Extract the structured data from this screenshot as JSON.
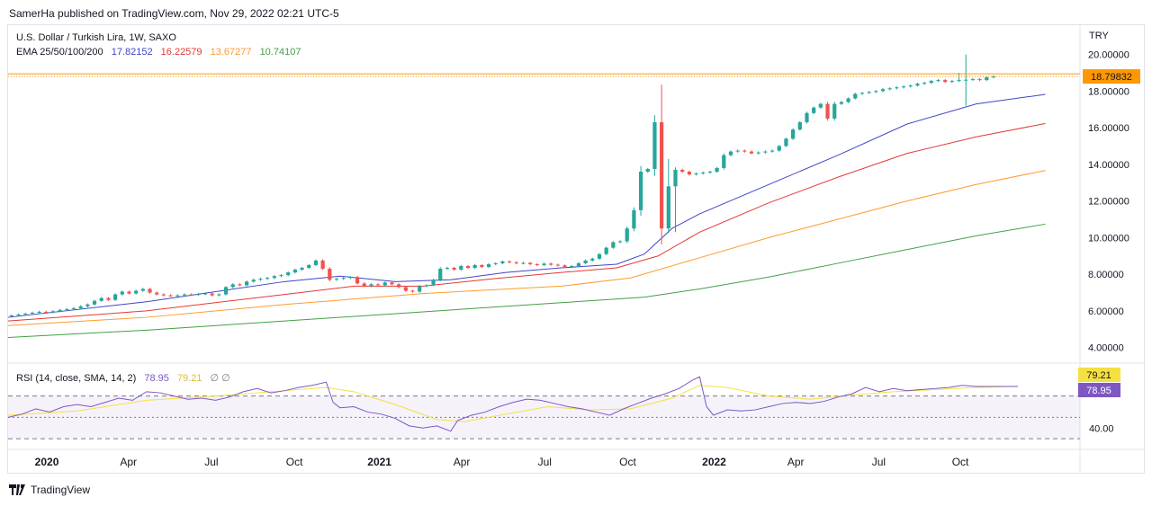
{
  "header": {
    "published": "SamerHa published on TradingView.com, Nov 29, 2022 02:21 UTC-5"
  },
  "footer": {
    "brand": "TradingView"
  },
  "colors": {
    "up": "#26a69a",
    "down": "#ef5350",
    "ema25": "#3f45c7",
    "ema50": "#e53935",
    "ema100": "#ff9a2e",
    "ema200": "#43a047",
    "rsi": "#7e57c2",
    "rsi_ma": "#f5e042",
    "price_line": "#ff9800"
  },
  "chart_data": [
    {
      "type": "candlestick",
      "title": "U.S. Dollar / Turkish Lira, 1W, SAXO",
      "currency": "TRY",
      "ylim": [
        3.2,
        21.5
      ],
      "yticks": [
        4,
        6,
        8,
        10,
        12,
        14,
        16,
        18,
        20
      ],
      "ytick_labels": [
        "4.00000",
        "6.00000",
        "8.00000",
        "10.00000",
        "12.00000",
        "14.00000",
        "16.00000",
        "18.00000",
        "20.00000"
      ],
      "last_price": 18.79832,
      "last_price_label": "18.79832",
      "xlim": [
        0,
        155
      ],
      "xticks": [
        {
          "i": 5.6,
          "label": "2020"
        },
        {
          "i": 17.4,
          "label": "Apr"
        },
        {
          "i": 29.4,
          "label": "Jul"
        },
        {
          "i": 41.4,
          "label": "Oct"
        },
        {
          "i": 53.7,
          "label": "2021"
        },
        {
          "i": 65.6,
          "label": "Apr"
        },
        {
          "i": 77.6,
          "label": "Jul"
        },
        {
          "i": 89.6,
          "label": "Oct"
        },
        {
          "i": 102.1,
          "label": "2022"
        },
        {
          "i": 113.9,
          "label": "Apr"
        },
        {
          "i": 125.9,
          "label": "Jul"
        },
        {
          "i": 137.7,
          "label": "Oct"
        }
      ],
      "closes": [
        5.75,
        5.8,
        5.85,
        5.9,
        5.95,
        5.92,
        5.98,
        6.05,
        6.1,
        6.15,
        6.25,
        6.35,
        6.55,
        6.7,
        6.6,
        6.9,
        7.05,
        6.95,
        7.1,
        7.2,
        7.0,
        6.9,
        6.85,
        6.82,
        6.85,
        6.9,
        6.88,
        6.92,
        6.95,
        6.85,
        6.9,
        7.3,
        7.45,
        7.4,
        7.6,
        7.7,
        7.75,
        7.8,
        7.9,
        7.95,
        8.1,
        8.25,
        8.35,
        8.5,
        8.75,
        8.3,
        7.7,
        7.75,
        7.8,
        7.85,
        7.5,
        7.35,
        7.45,
        7.4,
        7.55,
        7.45,
        7.3,
        7.1,
        7.05,
        7.35,
        7.4,
        7.7,
        8.3,
        8.35,
        8.25,
        8.45,
        8.35,
        8.5,
        8.4,
        8.55,
        8.6,
        8.7,
        8.65,
        8.6,
        8.62,
        8.55,
        8.5,
        8.58,
        8.52,
        8.48,
        8.4,
        8.45,
        8.6,
        8.75,
        8.85,
        9.1,
        9.45,
        9.75,
        9.8,
        10.5,
        11.5,
        13.6,
        13.75,
        16.3,
        10.5,
        12.8,
        13.7,
        13.6,
        13.45,
        13.5,
        13.55,
        13.6,
        13.8,
        14.5,
        14.7,
        14.75,
        14.7,
        14.6,
        14.65,
        14.7,
        14.75,
        15.0,
        15.4,
        15.9,
        16.3,
        16.8,
        17.1,
        17.3,
        16.5,
        17.3,
        17.4,
        17.6,
        17.85,
        17.9,
        17.95,
        18.0,
        18.1,
        18.15,
        18.2,
        18.25,
        18.3,
        18.4,
        18.45,
        18.55,
        18.6,
        18.5,
        18.55,
        18.6,
        18.62,
        18.65,
        18.6,
        18.75,
        18.8
      ],
      "highs_override": {
        "94": 18.35,
        "95": 14.3,
        "137": 19.0,
        "138": 20.0
      },
      "lows_override": {
        "95": 10.25,
        "96": 10.3,
        "138": 17.2
      },
      "series": [
        {
          "name": "EMA 25",
          "label": "17.82152",
          "points": [
            [
              0,
              5.65
            ],
            [
              20,
              6.5
            ],
            [
              40,
              7.6
            ],
            [
              48,
              7.9
            ],
            [
              56,
              7.6
            ],
            [
              64,
              7.7
            ],
            [
              72,
              8.1
            ],
            [
              80,
              8.35
            ],
            [
              88,
              8.55
            ],
            [
              92,
              9.1
            ],
            [
              96,
              10.5
            ],
            [
              100,
              11.3
            ],
            [
              110,
              12.9
            ],
            [
              120,
              14.5
            ],
            [
              130,
              16.2
            ],
            [
              140,
              17.3
            ],
            [
              150,
              17.82
            ]
          ]
        },
        {
          "name": "EMA 50",
          "label": "16.22579",
          "points": [
            [
              0,
              5.45
            ],
            [
              20,
              6.0
            ],
            [
              40,
              6.9
            ],
            [
              50,
              7.35
            ],
            [
              60,
              7.35
            ],
            [
              70,
              7.75
            ],
            [
              80,
              8.1
            ],
            [
              88,
              8.35
            ],
            [
              94,
              9.0
            ],
            [
              100,
              10.3
            ],
            [
              110,
              11.9
            ],
            [
              120,
              13.3
            ],
            [
              130,
              14.6
            ],
            [
              140,
              15.5
            ],
            [
              150,
              16.23
            ]
          ]
        },
        {
          "name": "EMA 100",
          "label": "13.67277",
          "points": [
            [
              0,
              5.2
            ],
            [
              20,
              5.65
            ],
            [
              40,
              6.35
            ],
            [
              60,
              6.95
            ],
            [
              80,
              7.35
            ],
            [
              90,
              7.8
            ],
            [
              100,
              8.9
            ],
            [
              110,
              10.0
            ],
            [
              120,
              11.0
            ],
            [
              130,
              12.0
            ],
            [
              140,
              12.9
            ],
            [
              150,
              13.67
            ]
          ]
        },
        {
          "name": "EMA 200",
          "label": "10.74107",
          "points": [
            [
              0,
              4.55
            ],
            [
              20,
              4.95
            ],
            [
              40,
              5.45
            ],
            [
              60,
              5.95
            ],
            [
              80,
              6.45
            ],
            [
              92,
              6.75
            ],
            [
              100,
              7.2
            ],
            [
              110,
              7.85
            ],
            [
              120,
              8.6
            ],
            [
              130,
              9.35
            ],
            [
              140,
              10.1
            ],
            [
              150,
              10.74
            ]
          ]
        }
      ],
      "legend_prefix": "EMA 25/50/100/200"
    },
    {
      "type": "line",
      "title": "RSI (14, close, SMA, 14, 2)",
      "ylim": [
        20,
        100
      ],
      "yticks": [
        40
      ],
      "ytick_labels": [
        "40.00"
      ],
      "bands": [
        30,
        50,
        70
      ],
      "series": [
        {
          "name": "RSI",
          "label": "78.95",
          "points": [
            [
              0,
              50
            ],
            [
              2,
              53
            ],
            [
              4,
              58
            ],
            [
              6,
              55
            ],
            [
              8,
              60
            ],
            [
              10,
              62
            ],
            [
              12,
              60
            ],
            [
              14,
              64
            ],
            [
              16,
              68
            ],
            [
              18,
              66
            ],
            [
              20,
              74
            ],
            [
              22,
              73
            ],
            [
              24,
              70
            ],
            [
              26,
              67
            ],
            [
              28,
              68
            ],
            [
              30,
              66
            ],
            [
              32,
              69
            ],
            [
              34,
              74
            ],
            [
              36,
              77
            ],
            [
              38,
              73
            ],
            [
              40,
              75
            ],
            [
              42,
              78
            ],
            [
              44,
              80
            ],
            [
              46,
              83
            ],
            [
              47,
              64
            ],
            [
              48,
              59
            ],
            [
              50,
              60
            ],
            [
              52,
              55
            ],
            [
              54,
              53
            ],
            [
              56,
              49
            ],
            [
              58,
              42
            ],
            [
              60,
              40
            ],
            [
              62,
              42
            ],
            [
              64,
              37
            ],
            [
              65,
              47
            ],
            [
              67,
              52
            ],
            [
              69,
              55
            ],
            [
              71,
              60
            ],
            [
              73,
              64
            ],
            [
              75,
              67
            ],
            [
              77,
              66
            ],
            [
              79,
              63
            ],
            [
              81,
              60
            ],
            [
              83,
              58
            ],
            [
              85,
              55
            ],
            [
              87,
              52
            ],
            [
              89,
              58
            ],
            [
              91,
              63
            ],
            [
              93,
              68
            ],
            [
              95,
              72
            ],
            [
              97,
              77
            ],
            [
              99,
              85
            ],
            [
              100,
              88
            ],
            [
              101,
              60
            ],
            [
              102,
              52
            ],
            [
              104,
              57
            ],
            [
              106,
              56
            ],
            [
              108,
              57
            ],
            [
              110,
              60
            ],
            [
              112,
              63
            ],
            [
              114,
              64
            ],
            [
              116,
              63
            ],
            [
              118,
              65
            ],
            [
              120,
              69
            ],
            [
              122,
              72
            ],
            [
              124,
              78
            ],
            [
              126,
              74
            ],
            [
              128,
              77
            ],
            [
              130,
              75
            ],
            [
              132,
              76
            ],
            [
              134,
              77
            ],
            [
              136,
              78
            ],
            [
              138,
              80
            ],
            [
              140,
              79
            ],
            [
              142,
              79
            ],
            [
              144,
              79
            ],
            [
              146,
              78.95
            ]
          ]
        },
        {
          "name": "RSI-based MA",
          "label": "79.21",
          "points": [
            [
              0,
              52
            ],
            [
              10,
              56
            ],
            [
              20,
              66
            ],
            [
              30,
              70
            ],
            [
              40,
              75
            ],
            [
              46,
              78
            ],
            [
              50,
              74
            ],
            [
              56,
              62
            ],
            [
              62,
              48
            ],
            [
              66,
              46
            ],
            [
              72,
              53
            ],
            [
              78,
              60
            ],
            [
              84,
              57
            ],
            [
              90,
              58
            ],
            [
              96,
              68
            ],
            [
              100,
              80
            ],
            [
              104,
              78
            ],
            [
              110,
              70
            ],
            [
              116,
              67
            ],
            [
              122,
              71
            ],
            [
              128,
              74
            ],
            [
              134,
              76
            ],
            [
              140,
              78
            ],
            [
              146,
              79.21
            ]
          ]
        }
      ]
    }
  ]
}
